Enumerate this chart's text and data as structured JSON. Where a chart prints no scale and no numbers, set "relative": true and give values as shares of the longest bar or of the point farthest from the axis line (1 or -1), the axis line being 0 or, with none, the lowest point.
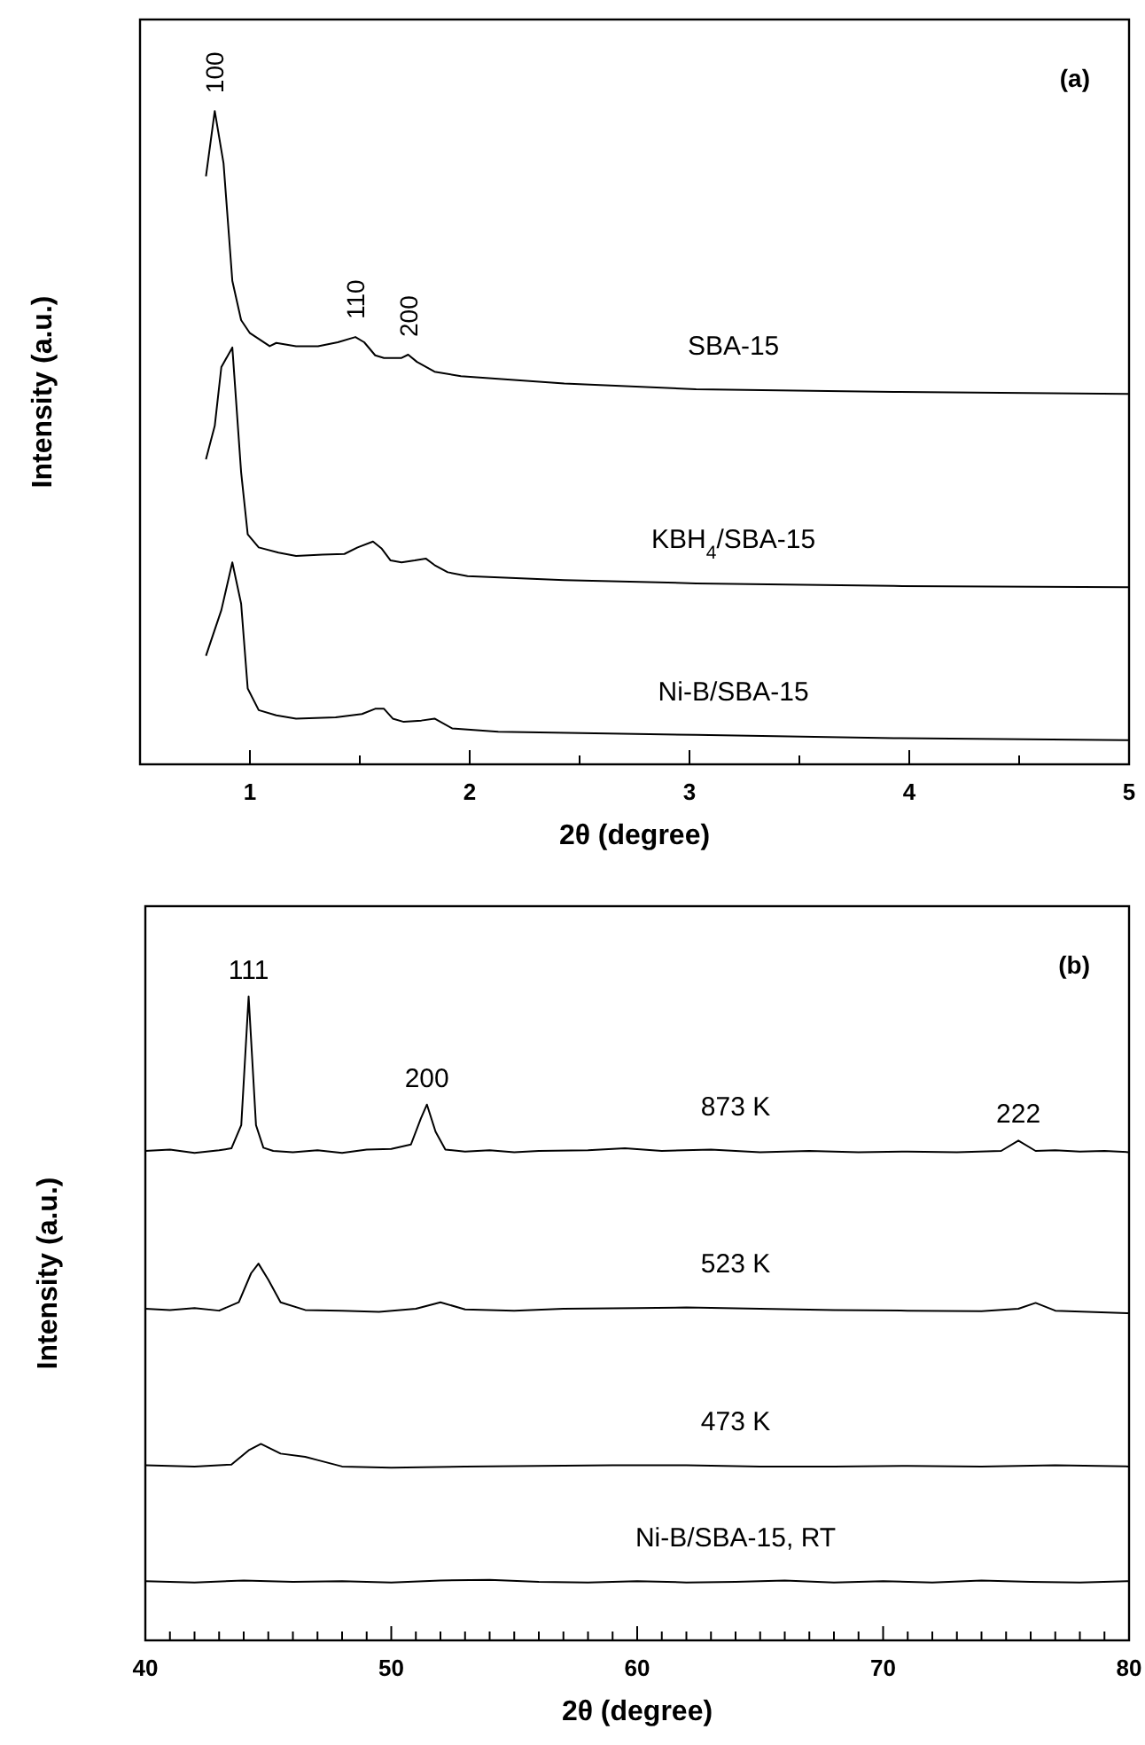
{
  "chart_data": [
    {
      "type": "line",
      "relative": true,
      "xlabel": "2θ (degree)",
      "ylabel": "Intensity (a.u.)",
      "xlim": [
        0.5,
        5
      ],
      "xticks": [
        {
          "value": 0.5,
          "label": null
        },
        1,
        {
          "value": 1.5,
          "label": null
        },
        2,
        {
          "value": 2.5,
          "label": null
        },
        3,
        {
          "value": 3.5,
          "label": null
        },
        4,
        {
          "value": 4.5,
          "label": null
        },
        5
      ],
      "grid": false,
      "annotations": [
        "(a)",
        {
          "text": "100",
          "x": 0.84,
          "y": 1.0
        },
        {
          "text": "110",
          "x": 1.48,
          "y": 0.654
        },
        {
          "text": "200",
          "x": 1.72,
          "y": 0.627
        }
      ],
      "series": [
        {
          "name": "SBA-15",
          "color": "#000000",
          "x": [
            0.8,
            0.84,
            0.88,
            0.92,
            0.96,
            1.0,
            1.09,
            1.12,
            1.21,
            1.31,
            1.4,
            1.48,
            1.52,
            1.57,
            1.61,
            1.69,
            1.72,
            1.76,
            1.84,
            1.96,
            2.13,
            2.43,
            3.03,
            3.93,
            5.0
          ],
          "values": [
            0.9,
            1.0,
            0.92,
            0.74,
            0.68,
            0.66,
            0.64,
            0.645,
            0.64,
            0.64,
            0.646,
            0.654,
            0.646,
            0.626,
            0.622,
            0.622,
            0.627,
            0.616,
            0.601,
            0.594,
            0.59,
            0.583,
            0.574,
            0.57,
            0.567
          ]
        },
        {
          "name": "KBH$_{4}$/SBA-15",
          "color": "#000000",
          "x": [
            0.8,
            0.84,
            0.87,
            0.92,
            0.96,
            0.99,
            1.04,
            1.13,
            1.21,
            1.33,
            1.43,
            1.49,
            1.56,
            1.6,
            1.64,
            1.69,
            1.75,
            1.8,
            1.84,
            1.9,
            1.99,
            2.43,
            3.03,
            3.93,
            5.0
          ],
          "values": [
            0.467,
            0.518,
            0.608,
            0.638,
            0.447,
            0.352,
            0.332,
            0.324,
            0.319,
            0.321,
            0.322,
            0.332,
            0.341,
            0.33,
            0.312,
            0.309,
            0.312,
            0.315,
            0.305,
            0.294,
            0.288,
            0.282,
            0.277,
            0.273,
            0.271
          ]
        },
        {
          "name": "Ni-B/SBA-15",
          "color": "#000000",
          "x": [
            0.8,
            0.87,
            0.92,
            0.96,
            0.99,
            1.04,
            1.12,
            1.21,
            1.39,
            1.51,
            1.57,
            1.61,
            1.65,
            1.7,
            1.78,
            1.84,
            1.92,
            2.13,
            3.03,
            3.93,
            5.0
          ],
          "values": [
            0.166,
            0.236,
            0.309,
            0.246,
            0.116,
            0.083,
            0.075,
            0.07,
            0.072,
            0.077,
            0.085,
            0.085,
            0.07,
            0.065,
            0.067,
            0.07,
            0.055,
            0.05,
            0.045,
            0.04,
            0.037
          ]
        }
      ]
    },
    {
      "type": "line",
      "relative": true,
      "xlabel": "2θ (degree)",
      "ylabel": "Intensity (a.u.)",
      "xlim": [
        40,
        80
      ],
      "xticks": [
        40,
        {
          "value": 41,
          "label": null
        },
        {
          "value": 42,
          "label": null
        },
        {
          "value": 43,
          "label": null
        },
        {
          "value": 44,
          "label": null
        },
        {
          "value": 45,
          "label": null
        },
        {
          "value": 46,
          "label": null
        },
        {
          "value": 47,
          "label": null
        },
        {
          "value": 48,
          "label": null
        },
        {
          "value": 49,
          "label": null
        },
        50,
        {
          "value": 51,
          "label": null
        },
        {
          "value": 52,
          "label": null
        },
        {
          "value": 53,
          "label": null
        },
        {
          "value": 54,
          "label": null
        },
        {
          "value": 55,
          "label": null
        },
        {
          "value": 56,
          "label": null
        },
        {
          "value": 57,
          "label": null
        },
        {
          "value": 58,
          "label": null
        },
        {
          "value": 59,
          "label": null
        },
        60,
        {
          "value": 61,
          "label": null
        },
        {
          "value": 62,
          "label": null
        },
        {
          "value": 63,
          "label": null
        },
        {
          "value": 64,
          "label": null
        },
        {
          "value": 65,
          "label": null
        },
        {
          "value": 66,
          "label": null
        },
        {
          "value": 67,
          "label": null
        },
        {
          "value": 68,
          "label": null
        },
        {
          "value": 69,
          "label": null
        },
        70,
        {
          "value": 71,
          "label": null
        },
        {
          "value": 72,
          "label": null
        },
        {
          "value": 73,
          "label": null
        },
        {
          "value": 74,
          "label": null
        },
        {
          "value": 75,
          "label": null
        },
        {
          "value": 76,
          "label": null
        },
        {
          "value": 77,
          "label": null
        },
        {
          "value": 78,
          "label": null
        },
        {
          "value": 79,
          "label": null
        },
        80
      ],
      "grid": false,
      "annotations": [
        "(b)",
        {
          "text": "111",
          "x": 44.2,
          "y": 1.0
        },
        {
          "text": "200",
          "x": 51.45,
          "y": 0.832
        },
        {
          "text": "222",
          "x": 75.5,
          "y": 0.776
        }
      ],
      "series": [
        {
          "name": "873 K",
          "color": "#000000",
          "x": [
            40,
            41,
            42,
            43,
            43.5,
            43.9,
            44.2,
            44.5,
            44.8,
            45.2,
            46,
            47,
            48,
            49,
            50,
            50.8,
            51.2,
            51.45,
            51.8,
            52.2,
            53,
            54,
            55,
            56,
            58,
            59.5,
            61,
            63,
            65,
            67,
            69,
            71,
            73,
            74.8,
            75.5,
            76.2,
            77,
            78,
            79,
            80
          ],
          "values": [
            0.76,
            0.762,
            0.757,
            0.761,
            0.764,
            0.8,
            1.0,
            0.8,
            0.765,
            0.76,
            0.758,
            0.761,
            0.757,
            0.762,
            0.763,
            0.77,
            0.81,
            0.832,
            0.79,
            0.762,
            0.759,
            0.761,
            0.758,
            0.76,
            0.761,
            0.764,
            0.76,
            0.762,
            0.758,
            0.76,
            0.758,
            0.759,
            0.758,
            0.76,
            0.776,
            0.76,
            0.761,
            0.759,
            0.76,
            0.758
          ]
        },
        {
          "name": "523 K",
          "color": "#000000",
          "x": [
            40,
            41,
            42,
            43,
            43.8,
            44.3,
            44.6,
            45,
            45.5,
            46.5,
            48,
            49.5,
            51,
            52,
            53,
            55,
            57,
            60,
            62,
            65,
            68,
            71,
            74,
            75.5,
            76.2,
            77,
            80
          ],
          "values": [
            0.515,
            0.513,
            0.516,
            0.512,
            0.525,
            0.57,
            0.585,
            0.56,
            0.525,
            0.513,
            0.512,
            0.51,
            0.515,
            0.525,
            0.514,
            0.512,
            0.515,
            0.516,
            0.517,
            0.515,
            0.513,
            0.512,
            0.511,
            0.515,
            0.524,
            0.512,
            0.508
          ]
        },
        {
          "name": "473 K",
          "color": "#000000",
          "x": [
            40,
            42,
            43.5,
            44.2,
            44.7,
            45.5,
            46.5,
            47,
            48,
            50,
            53,
            56,
            59,
            62,
            65,
            68,
            71,
            74,
            77,
            80
          ],
          "values": [
            0.272,
            0.27,
            0.273,
            0.295,
            0.305,
            0.29,
            0.285,
            0.28,
            0.27,
            0.268,
            0.27,
            0.271,
            0.272,
            0.272,
            0.27,
            0.27,
            0.271,
            0.27,
            0.272,
            0.27
          ]
        },
        {
          "name": "Ni-B/SBA-15, RT",
          "color": "#000000",
          "x": [
            40,
            42,
            44,
            46,
            48,
            50,
            52,
            54,
            56,
            58,
            60,
            62,
            64,
            66,
            68,
            70,
            72,
            74,
            76,
            78,
            80
          ],
          "values": [
            0.092,
            0.09,
            0.093,
            0.091,
            0.092,
            0.09,
            0.093,
            0.094,
            0.091,
            0.09,
            0.092,
            0.09,
            0.091,
            0.093,
            0.09,
            0.092,
            0.09,
            0.093,
            0.091,
            0.09,
            0.092
          ]
        }
      ]
    }
  ]
}
